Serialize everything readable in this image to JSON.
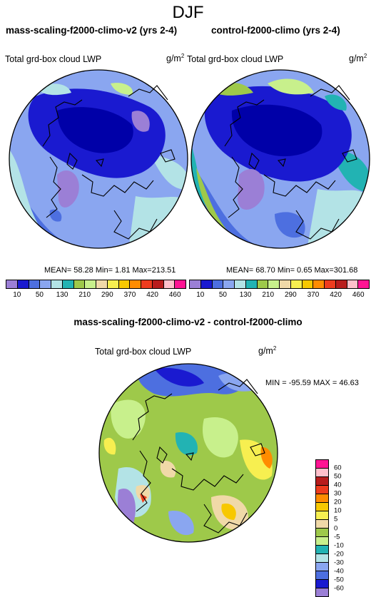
{
  "season": "DJF",
  "panels": [
    {
      "title": "mass-scaling-f2000-climo-v2 (yrs 2-4)",
      "variable": "Total grd-box cloud LWP",
      "unit_base": "g/m",
      "unit_exp": "2",
      "stats": "MEAN= 58.28 Min= 1.81 Max=213.51"
    },
    {
      "title": "control-f2000-climo (yrs 2-4)",
      "variable": "Total grd-box cloud LWP",
      "unit_base": "g/m",
      "unit_exp": "2",
      "stats": "MEAN= 68.70 Min= 0.65 Max=301.68"
    }
  ],
  "colorbar": {
    "labels": [
      "10",
      "50",
      "130",
      "210",
      "290",
      "370",
      "420",
      "460"
    ],
    "colors": [
      "#9b7fd6",
      "#1a1ad0",
      "#4d6fe0",
      "#8aa6f0",
      "#b3e3e6",
      "#22b3b3",
      "#9ec94a",
      "#c8f08c",
      "#f0d9a8",
      "#f7ef50",
      "#f7c800",
      "#ff8c00",
      "#ee3c1e",
      "#b81c1c",
      "#ffc0cb",
      "#ff1493"
    ]
  },
  "diff": {
    "title": "mass-scaling-f2000-climo-v2 - control-f2000-climo",
    "variable": "Total grd-box cloud LWP",
    "unit_base": "g/m",
    "unit_exp": "2",
    "stats": "MIN = -95.59 MAX = 46.63",
    "colorbar": {
      "labels": [
        "60",
        "50",
        "40",
        "30",
        "20",
        "10",
        "5",
        "0",
        "-5",
        "-10",
        "-20",
        "-30",
        "-40",
        "-50",
        "-60"
      ],
      "colors": [
        "#ff1493",
        "#ffc0cb",
        "#b81c1c",
        "#ee3c1e",
        "#ff8c00",
        "#f7c800",
        "#f7ef50",
        "#f0d9a8",
        "#9ec94a",
        "#c8f08c",
        "#22b3b3",
        "#b3e3e6",
        "#8aa6f0",
        "#4d6fe0",
        "#1a1ad0",
        "#9b7fd6"
      ]
    }
  }
}
